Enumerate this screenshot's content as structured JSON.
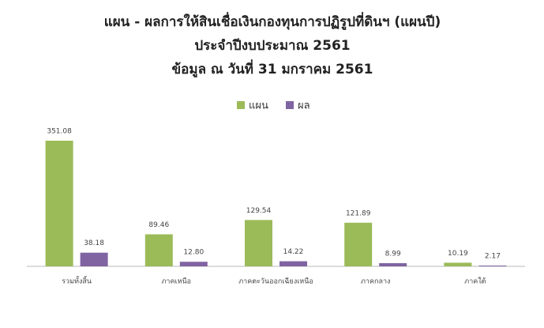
{
  "chart_data": {
    "type": "bar",
    "title": "แผน - ผลการให้สินเชื่อเงินกองทุนการปฏิรูปที่ดินฯ  (แผนปี)",
    "subtitle": "ประจำปีงบประมาณ 2561",
    "annotation": "ข้อมูล ณ วันที่ 31 มกราคม 2561",
    "categories": [
      "รวมทั้งสิ้น",
      "ภาคเหนือ",
      "ภาคตะวันออกเฉียงเหนือ",
      "ภาคกลาง",
      "ภาคใต้"
    ],
    "series": [
      {
        "name": "แผน",
        "color": "#9bbb59",
        "values": [
          351.08,
          89.46,
          129.54,
          121.89,
          10.19
        ],
        "value_labels": [
          "351.08",
          "89.46",
          "129.54",
          "121.89",
          "10.19"
        ]
      },
      {
        "name": "ผล",
        "color": "#8064a2",
        "values": [
          38.18,
          12.8,
          14.22,
          8.99,
          2.17
        ],
        "value_labels": [
          "38.18",
          "12.80",
          "14.22",
          "8.99",
          "2.17"
        ]
      }
    ],
    "legend": "top"
  }
}
